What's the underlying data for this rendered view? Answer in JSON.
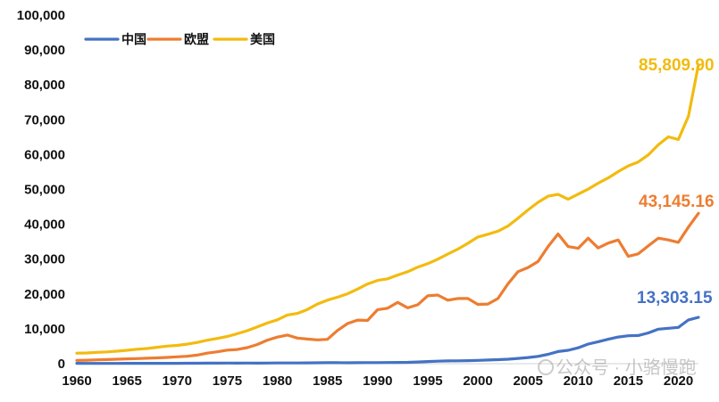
{
  "chart_data": {
    "type": "line",
    "title": "",
    "xlabel": "",
    "ylabel": "",
    "xlim": [
      1960,
      2022
    ],
    "ylim": [
      0,
      100000
    ],
    "x_ticks": [
      "1960",
      "1965",
      "1970",
      "1975",
      "1980",
      "1985",
      "1990",
      "1995",
      "2000",
      "2005",
      "2010",
      "2015",
      "2020"
    ],
    "y_ticks": [
      "0",
      "10,000",
      "20,000",
      "30,000",
      "40,000",
      "50,000",
      "60,000",
      "70,000",
      "80,000",
      "90,000",
      "100,000"
    ],
    "legend_position": "top-left",
    "grid": false,
    "x": [
      1960,
      1961,
      1962,
      1963,
      1964,
      1965,
      1966,
      1967,
      1968,
      1969,
      1970,
      1971,
      1972,
      1973,
      1974,
      1975,
      1976,
      1977,
      1978,
      1979,
      1980,
      1981,
      1982,
      1983,
      1984,
      1985,
      1986,
      1987,
      1988,
      1989,
      1990,
      1991,
      1992,
      1993,
      1994,
      1995,
      1996,
      1997,
      1998,
      1999,
      2000,
      2001,
      2002,
      2003,
      2004,
      2005,
      2006,
      2007,
      2008,
      2009,
      2010,
      2011,
      2012,
      2013,
      2014,
      2015,
      2016,
      2017,
      2018,
      2019,
      2020,
      2021,
      2022
    ],
    "series": [
      {
        "name": "中国",
        "color": "#4472c4",
        "end_label": "13,303.15",
        "values": [
          90,
          76,
          71,
          73,
          85,
          98,
          104,
          97,
          91,
          100,
          113,
          119,
          132,
          157,
          160,
          178,
          165,
          185,
          156,
          183,
          195,
          197,
          203,
          225,
          250,
          294,
          282,
          252,
          284,
          311,
          318,
          333,
          366,
          377,
          474,
          609,
          709,
          781,
          828,
          873,
          959,
          1053,
          1149,
          1289,
          1509,
          1753,
          2099,
          2694,
          3468,
          3832,
          4550,
          5614,
          6300,
          7020,
          7636,
          8016,
          8094,
          8817,
          9905,
          10144,
          10409,
          12556,
          13303
        ]
      },
      {
        "name": "欧盟",
        "color": "#ed7d31",
        "end_label": "43,145.16",
        "values": [
          940,
          1010,
          1090,
          1170,
          1270,
          1370,
          1470,
          1560,
          1660,
          1790,
          1960,
          2130,
          2460,
          3030,
          3400,
          3890,
          4060,
          4600,
          5510,
          6740,
          7620,
          8200,
          7340,
          7050,
          6820,
          6970,
          9540,
          11500,
          12500,
          12400,
          15500,
          15900,
          17600,
          16000,
          16900,
          19500,
          19700,
          18200,
          18700,
          18700,
          17000,
          17100,
          18700,
          22900,
          26400,
          27600,
          29300,
          33600,
          37200,
          33600,
          33100,
          36000,
          33200,
          34600,
          35500,
          30800,
          31500,
          33800,
          36000,
          35500,
          34800,
          39200,
          43145
        ]
      },
      {
        "name": "美国",
        "color": "#f2bb0f",
        "end_label": "85,809.90",
        "values": [
          3007,
          3067,
          3244,
          3375,
          3574,
          3828,
          4146,
          4336,
          4696,
          5032,
          5234,
          5609,
          6094,
          6726,
          7226,
          7801,
          8592,
          9453,
          10565,
          11674,
          12575,
          13976,
          14434,
          15544,
          17121,
          18237,
          19071,
          20039,
          21417,
          22857,
          23889,
          24342,
          25419,
          26387,
          27695,
          28691,
          29968,
          31459,
          32854,
          34515,
          36330,
          37134,
          37998,
          39490,
          41725,
          44123,
          46302,
          48050,
          48570,
          47195,
          48651,
          50066,
          51784,
          53291,
          55124,
          56763,
          57867,
          59915,
          62805,
          65095,
          64317,
          70996,
          85810
        ]
      }
    ],
    "watermark": "公众号 · 小骆慢跑"
  }
}
